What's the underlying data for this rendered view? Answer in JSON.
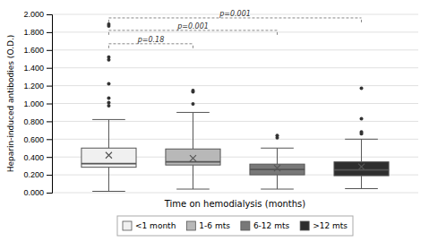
{
  "chart_data": {
    "type": "box",
    "xlabel": "Time on hemodialysis (months)",
    "ylabel": "Heparin-induced antibodies (O.D.)",
    "ylim": [
      0.0,
      2.0
    ],
    "yticks": [
      {
        "value": 0.0,
        "label": "0.000"
      },
      {
        "value": 0.2,
        "label": "0.200"
      },
      {
        "value": 0.4,
        "label": "0.400"
      },
      {
        "value": 0.6,
        "label": "0.600"
      },
      {
        "value": 0.8,
        "label": "0.800"
      },
      {
        "value": 1.0,
        "label": "1.000"
      },
      {
        "value": 1.2,
        "label": "1.200"
      },
      {
        "value": 1.4,
        "label": "1.400"
      },
      {
        "value": 1.6,
        "label": "1.600"
      },
      {
        "value": 1.8,
        "label": "1.800"
      },
      {
        "value": 2.0,
        "label": "2.000"
      }
    ],
    "grid": true,
    "legend": "bottom",
    "series": [
      {
        "name": "<1 month",
        "color": "#f0f0f0",
        "q1": 0.285,
        "median": 0.325,
        "q3": 0.5,
        "whisker_low": 0.015,
        "whisker_high": 0.82,
        "mean": 0.42,
        "outliers": [
          0.975,
          1.01,
          1.06,
          1.22,
          1.49,
          1.52,
          1.87,
          1.89
        ]
      },
      {
        "name": "1-6 mts",
        "color": "#b8b8b8",
        "q1": 0.31,
        "median": 0.345,
        "q3": 0.49,
        "whisker_low": 0.04,
        "whisker_high": 0.9,
        "mean": 0.385,
        "outliers": [
          0.995,
          1.13,
          1.145
        ]
      },
      {
        "name": "6-12 mts",
        "color": "#787878",
        "q1": 0.2,
        "median": 0.26,
        "q3": 0.32,
        "whisker_low": 0.04,
        "whisker_high": 0.5,
        "mean": 0.275,
        "outliers": [
          0.615,
          0.64
        ]
      },
      {
        "name": ">12 mts",
        "color": "#2e2e2e",
        "q1": 0.19,
        "median": 0.255,
        "q3": 0.345,
        "whisker_low": 0.045,
        "whisker_high": 0.6,
        "mean": 0.29,
        "outliers": [
          0.66,
          0.68,
          0.83,
          1.17
        ]
      }
    ],
    "annotations": [
      {
        "from": "<1 month",
        "to": "1-6 mts",
        "y": 1.67,
        "y_drop": 1.62,
        "label": "p=0.18"
      },
      {
        "from": "<1 month",
        "to": "6-12 mts",
        "y": 1.82,
        "y_drop": 1.77,
        "label": "p=0.001"
      },
      {
        "from": "<1 month",
        "to": ">12 mts",
        "y": 1.96,
        "y_drop": 1.91,
        "label": "p=0.001"
      }
    ]
  }
}
